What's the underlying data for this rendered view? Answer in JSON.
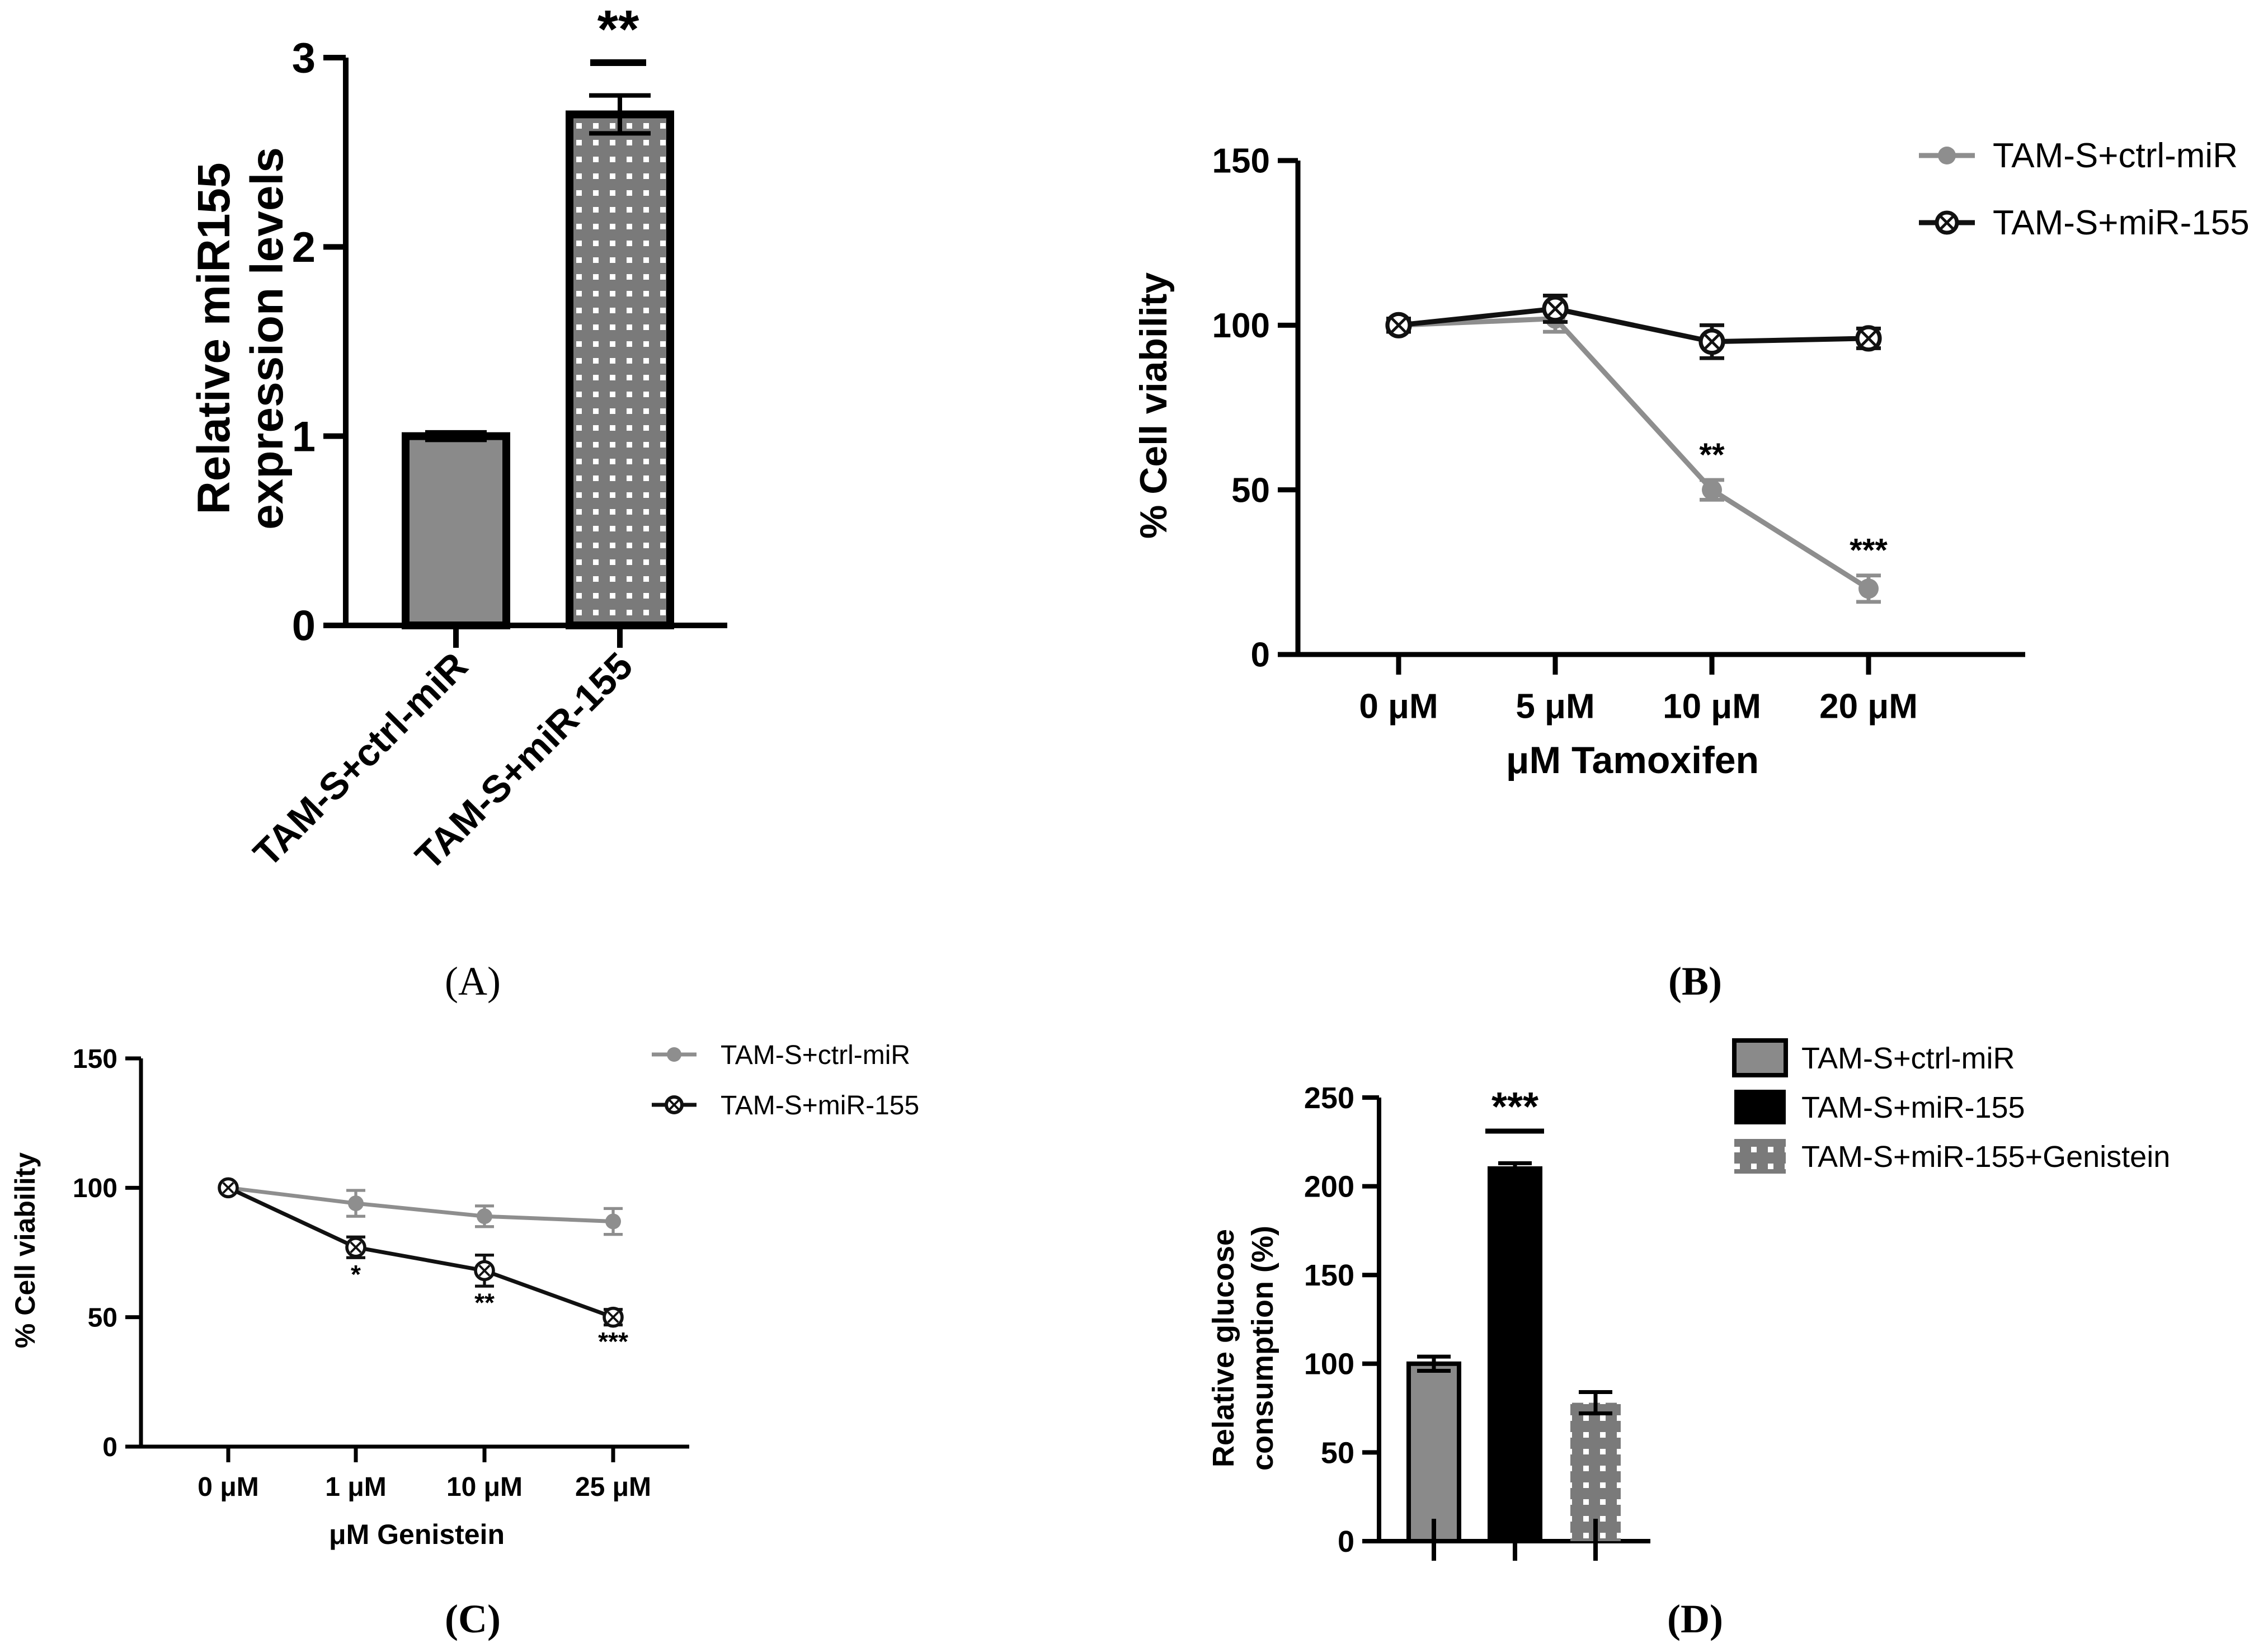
{
  "colors": {
    "gray": "#8a8a8a",
    "black": "#111111",
    "line_gray": "#8e8e8e"
  },
  "chart_data": [
    {
      "panel": "A",
      "type": "bar",
      "ylabel_lines": [
        "Relative miR155",
        "expression levels"
      ],
      "categories": [
        "TAM-S+ctrl-miR",
        "TAM-S+miR-155"
      ],
      "values": [
        1.0,
        2.7
      ],
      "errors": [
        0.02,
        0.1
      ],
      "fills": [
        "solid-gray",
        "dotted-gray"
      ],
      "ylim": [
        0,
        3
      ],
      "yticks": [
        "0",
        "1",
        "2",
        "3"
      ],
      "significance": [
        {
          "index": 1,
          "label": "**"
        }
      ],
      "grid": false
    },
    {
      "panel": "B",
      "type": "line",
      "xlabel": "μM Tamoxifen",
      "ylabel": "% Cell viability",
      "categories": [
        "0 μM",
        "5 μM",
        "10 μM",
        "20 μM"
      ],
      "ylim": [
        0,
        150
      ],
      "yticks": [
        "0",
        "50",
        "100",
        "150"
      ],
      "legend_position": "top-right",
      "grid": false,
      "series": [
        {
          "name": "TAM-S+ctrl-miR",
          "values": [
            100,
            102,
            50,
            20
          ],
          "errors": [
            2,
            4,
            3,
            4
          ],
          "marker": "filled-circle",
          "annotations": [
            "",
            "",
            "**",
            "***"
          ]
        },
        {
          "name": "TAM-S+miR-155",
          "values": [
            100,
            105,
            95,
            96
          ],
          "errors": [
            2,
            4,
            5,
            3
          ],
          "marker": "open-circle-x",
          "annotations": [
            "",
            "",
            "",
            ""
          ]
        }
      ]
    },
    {
      "panel": "C",
      "type": "line",
      "xlabel": "μM Genistein",
      "ylabel": "% Cell viability",
      "categories": [
        "0 μM",
        "1 μM",
        "10 μM",
        "25 μM"
      ],
      "ylim": [
        0,
        150
      ],
      "yticks": [
        "0",
        "50",
        "100",
        "150"
      ],
      "legend_position": "top-right",
      "grid": false,
      "series": [
        {
          "name": "TAM-S+ctrl-miR",
          "values": [
            100,
            94,
            89,
            87
          ],
          "errors": [
            1,
            5,
            4,
            5
          ],
          "marker": "filled-circle",
          "annotations": [
            "",
            "",
            "",
            ""
          ]
        },
        {
          "name": "TAM-S+miR-155",
          "values": [
            100,
            77,
            68,
            50
          ],
          "errors": [
            1,
            4,
            6,
            3
          ],
          "marker": "open-circle-x",
          "annotations": [
            "",
            "*",
            "**",
            "***"
          ]
        }
      ]
    },
    {
      "panel": "D",
      "type": "bar",
      "ylabel_lines": [
        "Relative glucose",
        "consumption (%)"
      ],
      "categories": [
        "TAM-S+ctrl-miR",
        "TAM-S+miR-155",
        "TAM-S+miR-155+Genistein"
      ],
      "values": [
        100,
        210,
        78
      ],
      "errors": [
        4,
        3,
        6
      ],
      "fills": [
        "solid-gray",
        "solid-black",
        "dotted-gray"
      ],
      "ylim": [
        0,
        250
      ],
      "yticks": [
        "0",
        "50",
        "100",
        "150",
        "200",
        "250"
      ],
      "significance": [
        {
          "index": 1,
          "label": "***"
        }
      ],
      "legend_position": "top-right",
      "grid": false
    }
  ],
  "panel_labels": {
    "A": "(A)",
    "B": "(B)",
    "C": "(C)",
    "D": "(D)"
  }
}
